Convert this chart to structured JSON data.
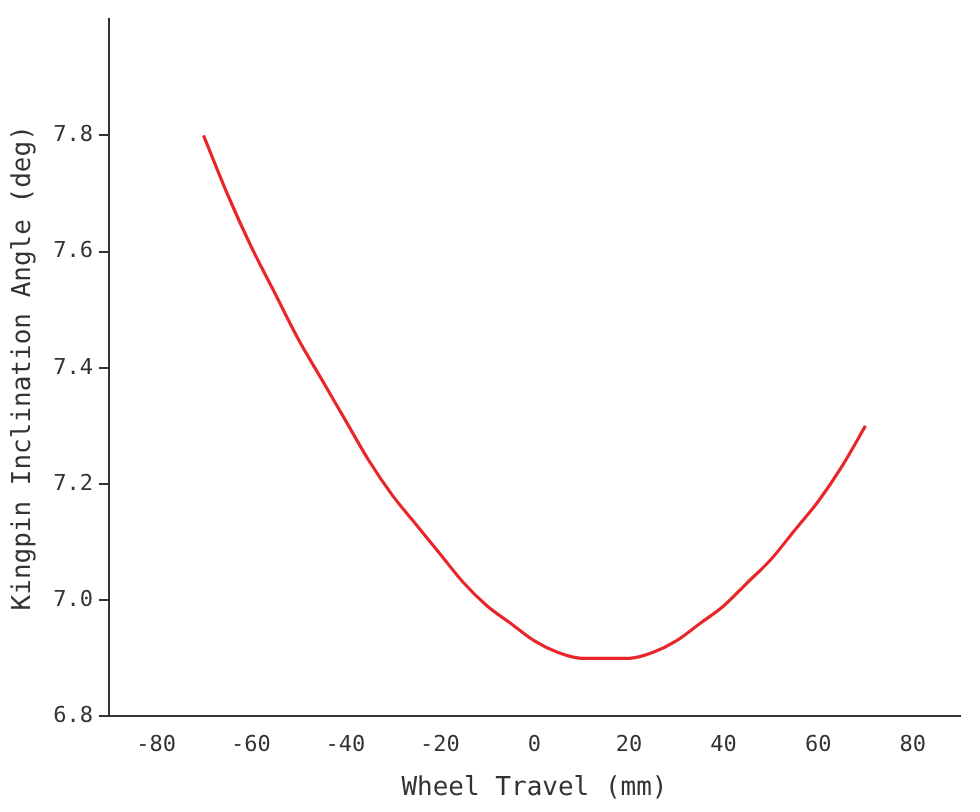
{
  "chart_data": {
    "type": "line",
    "xlabel": "Wheel Travel (mm)",
    "ylabel": "Kingpin Inclination Angle (deg)",
    "series": [
      {
        "color": "#e8262a",
        "x": [
          -70,
          -65,
          -60,
          -55,
          -50,
          -45,
          -40,
          -35,
          -30,
          -25,
          -20,
          -15,
          -10,
          -5,
          0,
          5,
          10,
          15,
          20,
          25,
          30,
          35,
          40,
          45,
          50,
          55,
          60,
          65,
          70
        ],
        "values": [
          7.8,
          7.7,
          7.61,
          7.53,
          7.45,
          7.38,
          7.31,
          7.24,
          7.18,
          7.13,
          7.08,
          7.03,
          6.99,
          6.96,
          6.93,
          6.91,
          6.9,
          6.9,
          6.9,
          6.91,
          6.93,
          6.96,
          6.99,
          7.03,
          7.07,
          7.12,
          7.17,
          7.23,
          7.3
        ]
      }
    ],
    "xlim": [
      -90,
      90
    ],
    "xticks": [
      -80,
      -60,
      -40,
      -20,
      0,
      20,
      40,
      60,
      80
    ],
    "ylim": [
      6.8,
      8.0
    ],
    "yticks": [
      {
        "value": 6.8,
        "label": "6.8"
      },
      {
        "value": 7.0,
        "label": "7.0"
      },
      {
        "value": 7.2,
        "label": "7.2"
      },
      {
        "value": 7.4,
        "label": "7.4"
      },
      {
        "value": 7.6,
        "label": "7.6"
      },
      {
        "value": 7.8,
        "label": "7.8"
      }
    ],
    "grid": false,
    "legend": false,
    "marker": "none",
    "line_style": "solid"
  }
}
